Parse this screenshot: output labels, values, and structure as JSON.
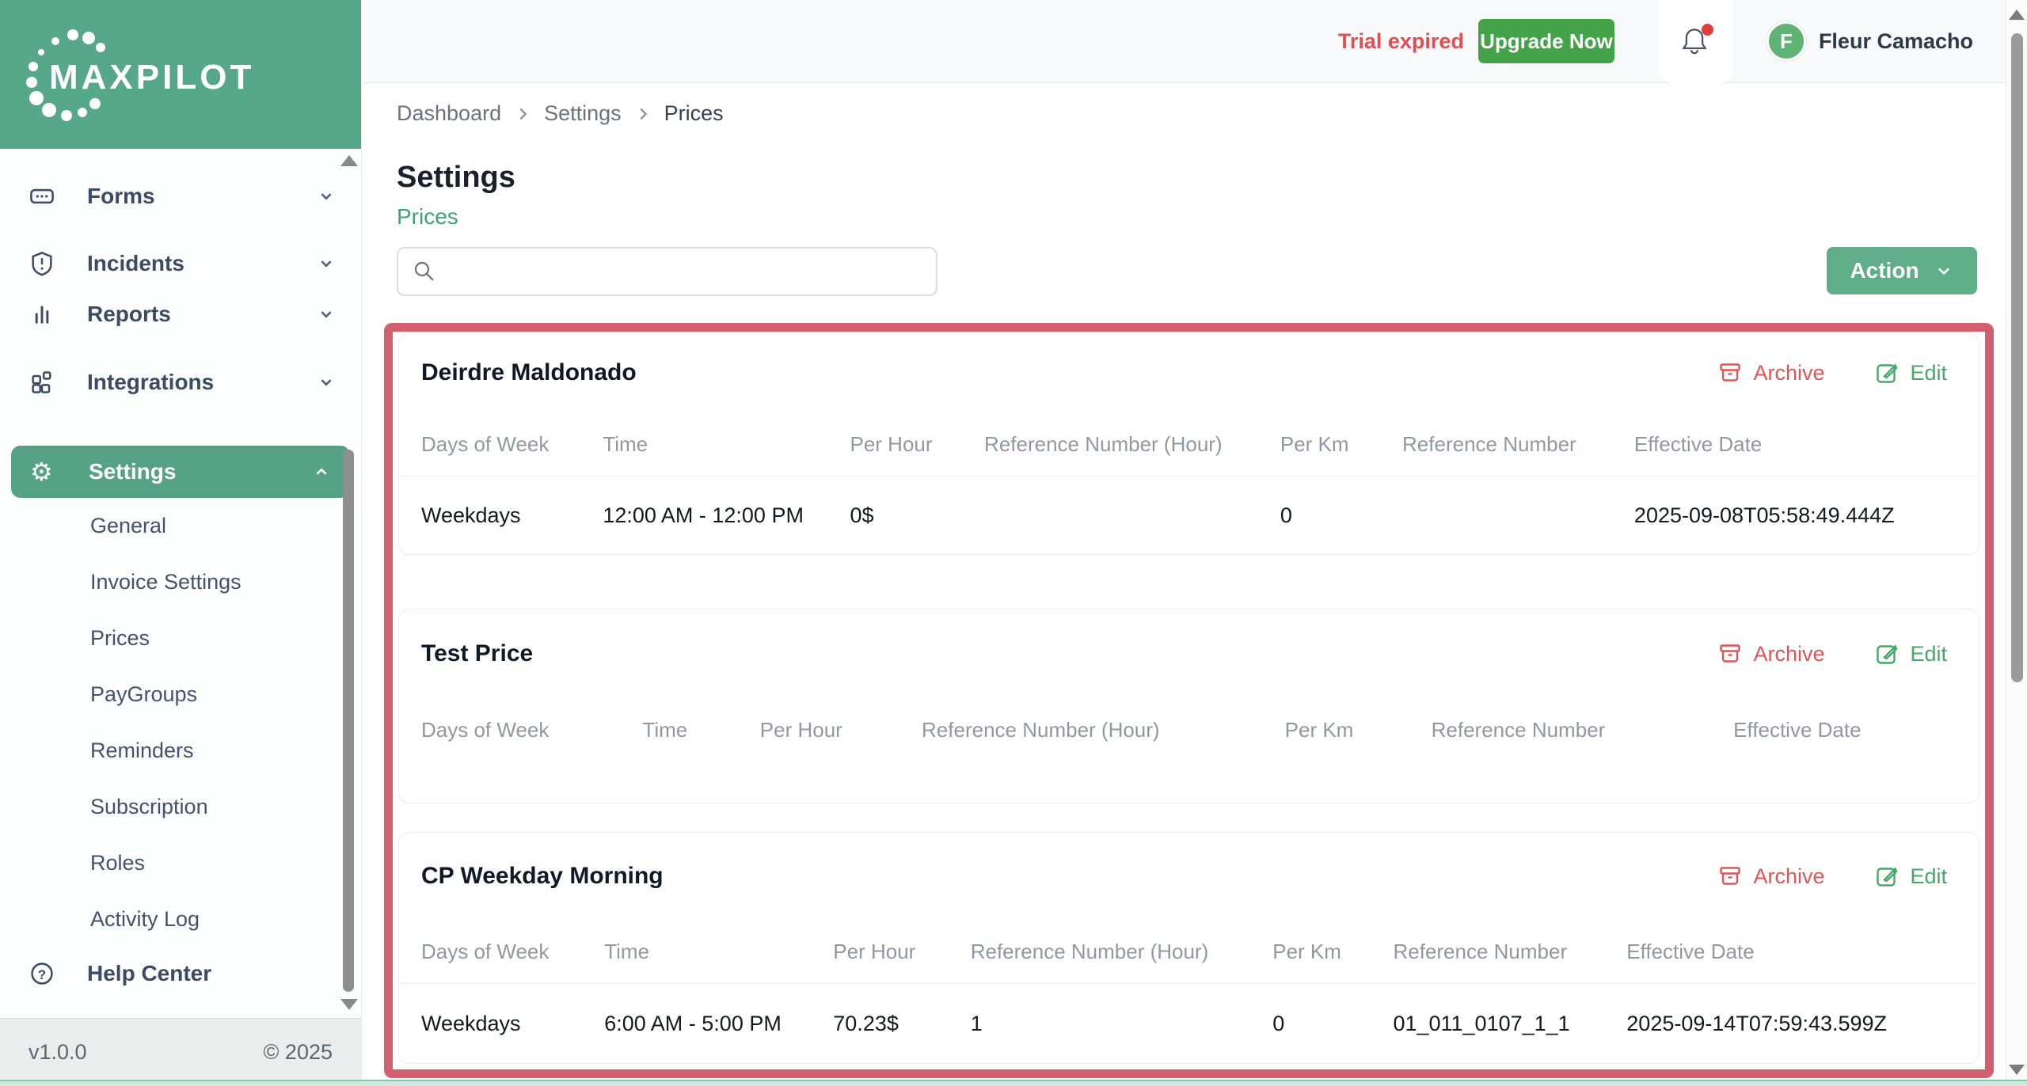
{
  "app": {
    "name": "MAXPILOT"
  },
  "topbar": {
    "trial_text": "Trial expired",
    "upgrade_label": "Upgrade Now",
    "notification_icon": "bell-icon",
    "user_initial": "F",
    "user_name": "Fleur Camacho"
  },
  "breadcrumb": [
    "Dashboard",
    "Settings",
    "Prices"
  ],
  "sidebar": {
    "items": [
      {
        "label": "Forms",
        "icon": "form-field-icon",
        "active": false
      },
      {
        "label": "Incidents",
        "icon": "shield-alert-icon",
        "active": false
      },
      {
        "label": "Reports",
        "icon": "bar-chart-icon",
        "active": false
      },
      {
        "label": "Integrations",
        "icon": "grid-icon",
        "active": false
      },
      {
        "label": "Settings",
        "icon": "gear-icon",
        "active": true,
        "expanded": true
      }
    ],
    "settings_submenu": [
      "General",
      "Invoice Settings",
      "Prices",
      "PayGroups",
      "Reminders",
      "Subscription",
      "Roles",
      "Activity Log"
    ],
    "help_label": "Help Center",
    "footer": {
      "version": "v1.0.0",
      "copyright": "© 2025"
    }
  },
  "page": {
    "title": "Settings",
    "subtitle": "Prices",
    "search_placeholder": "",
    "action_label": "Action"
  },
  "table_headers": [
    "Days of Week",
    "Time",
    "Per Hour",
    "Reference Number (Hour)",
    "Per Km",
    "Reference Number",
    "Effective Date"
  ],
  "card_actions": {
    "archive": "Archive",
    "edit": "Edit"
  },
  "cards": [
    {
      "title": "Deirdre Maldonado",
      "rows": [
        [
          "Weekdays",
          "12:00 AM - 12:00 PM",
          "0$",
          "",
          "0",
          "",
          "2025-09-08T05:58:49.444Z"
        ]
      ]
    },
    {
      "title": "Test Price",
      "rows": []
    },
    {
      "title": "CP Weekday Morning",
      "rows": [
        [
          "Weekdays",
          "6:00 AM - 5:00 PM",
          "70.23$",
          "1",
          "0",
          "01_011_0107_1_1",
          "2025-09-14T07:59:43.599Z"
        ]
      ]
    }
  ],
  "colors": {
    "brand_green": "#57a78b",
    "active_pill_green": "#55a287",
    "action_green": "#5fae89",
    "upgrade_green": "#44a248",
    "link_green": "#3fa374",
    "alert_red": "#e15050",
    "annotation_red": "#d25f6e"
  }
}
